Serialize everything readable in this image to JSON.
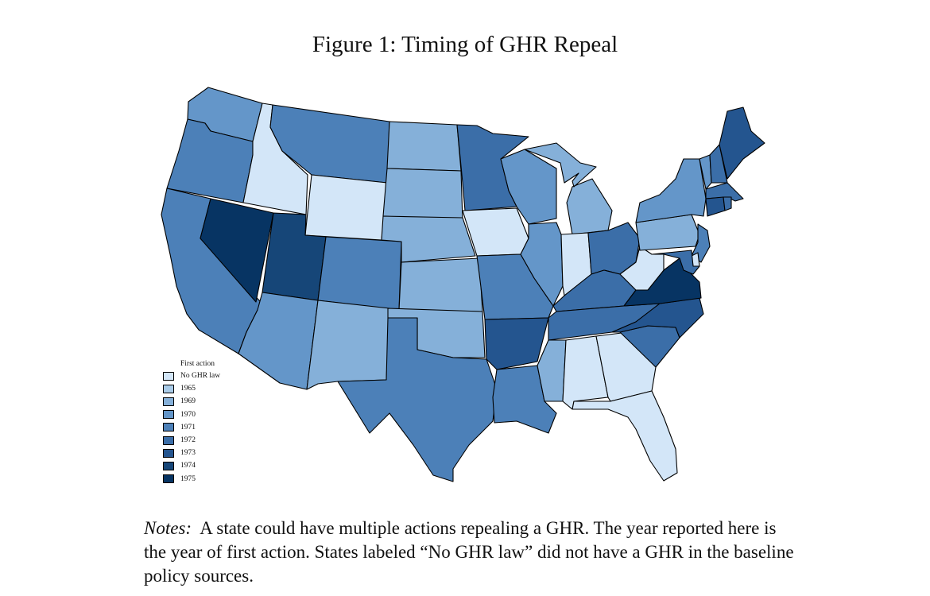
{
  "title": "Figure 1: Timing of GHR Repeal",
  "legend": {
    "title": "First action",
    "items": [
      {
        "label": "No GHR law",
        "color": "#d3e6f8"
      },
      {
        "label": "1965",
        "color": "#a9cbe8"
      },
      {
        "label": "1969",
        "color": "#85b0d9"
      },
      {
        "label": "1970",
        "color": "#6496c9"
      },
      {
        "label": "1971",
        "color": "#4c80b8"
      },
      {
        "label": "1972",
        "color": "#3b6ea8"
      },
      {
        "label": "1973",
        "color": "#24558f"
      },
      {
        "label": "1974",
        "color": "#164678"
      },
      {
        "label": "1975",
        "color": "#073463"
      }
    ]
  },
  "states": {
    "WA": "1970",
    "OR": "1971",
    "CA": "1971",
    "ID": "No GHR law",
    "NV": "1975",
    "MT": "1971",
    "WY": "No GHR law",
    "UT": "1974",
    "AZ": "1970",
    "CO": "1971",
    "NM": "1969",
    "ND": "1969",
    "SD": "1969",
    "NE": "1969",
    "KS": "1969",
    "OK": "1969",
    "TX": "1971",
    "MN": "1972",
    "IA": "No GHR law",
    "MO": "1971",
    "AR": "1973",
    "LA": "1971",
    "WI": "1970",
    "IL": "1970",
    "MI": "1969",
    "IN": "No GHR law",
    "OH": "1972",
    "KY": "1972",
    "TN": "1972",
    "MS": "1969",
    "AL": "No GHR law",
    "GA": "No GHR law",
    "FL": "No GHR law",
    "SC": "1972",
    "NC": "1973",
    "VA": "1975",
    "WV": "No GHR law",
    "PA": "1969",
    "NY": "1970",
    "VT": "1970",
    "NH": "1972",
    "ME": "1973",
    "MA": "1972",
    "CT": "1973",
    "RI": "1972",
    "NJ": "1971",
    "DE": "No GHR law",
    "MD": "1972"
  },
  "notes": {
    "label": "Notes:",
    "text": "A state could have multiple actions repealing a GHR. The year reported here is the year of first action. States labeled “No GHR law” did not have a GHR in the baseline policy sources."
  }
}
